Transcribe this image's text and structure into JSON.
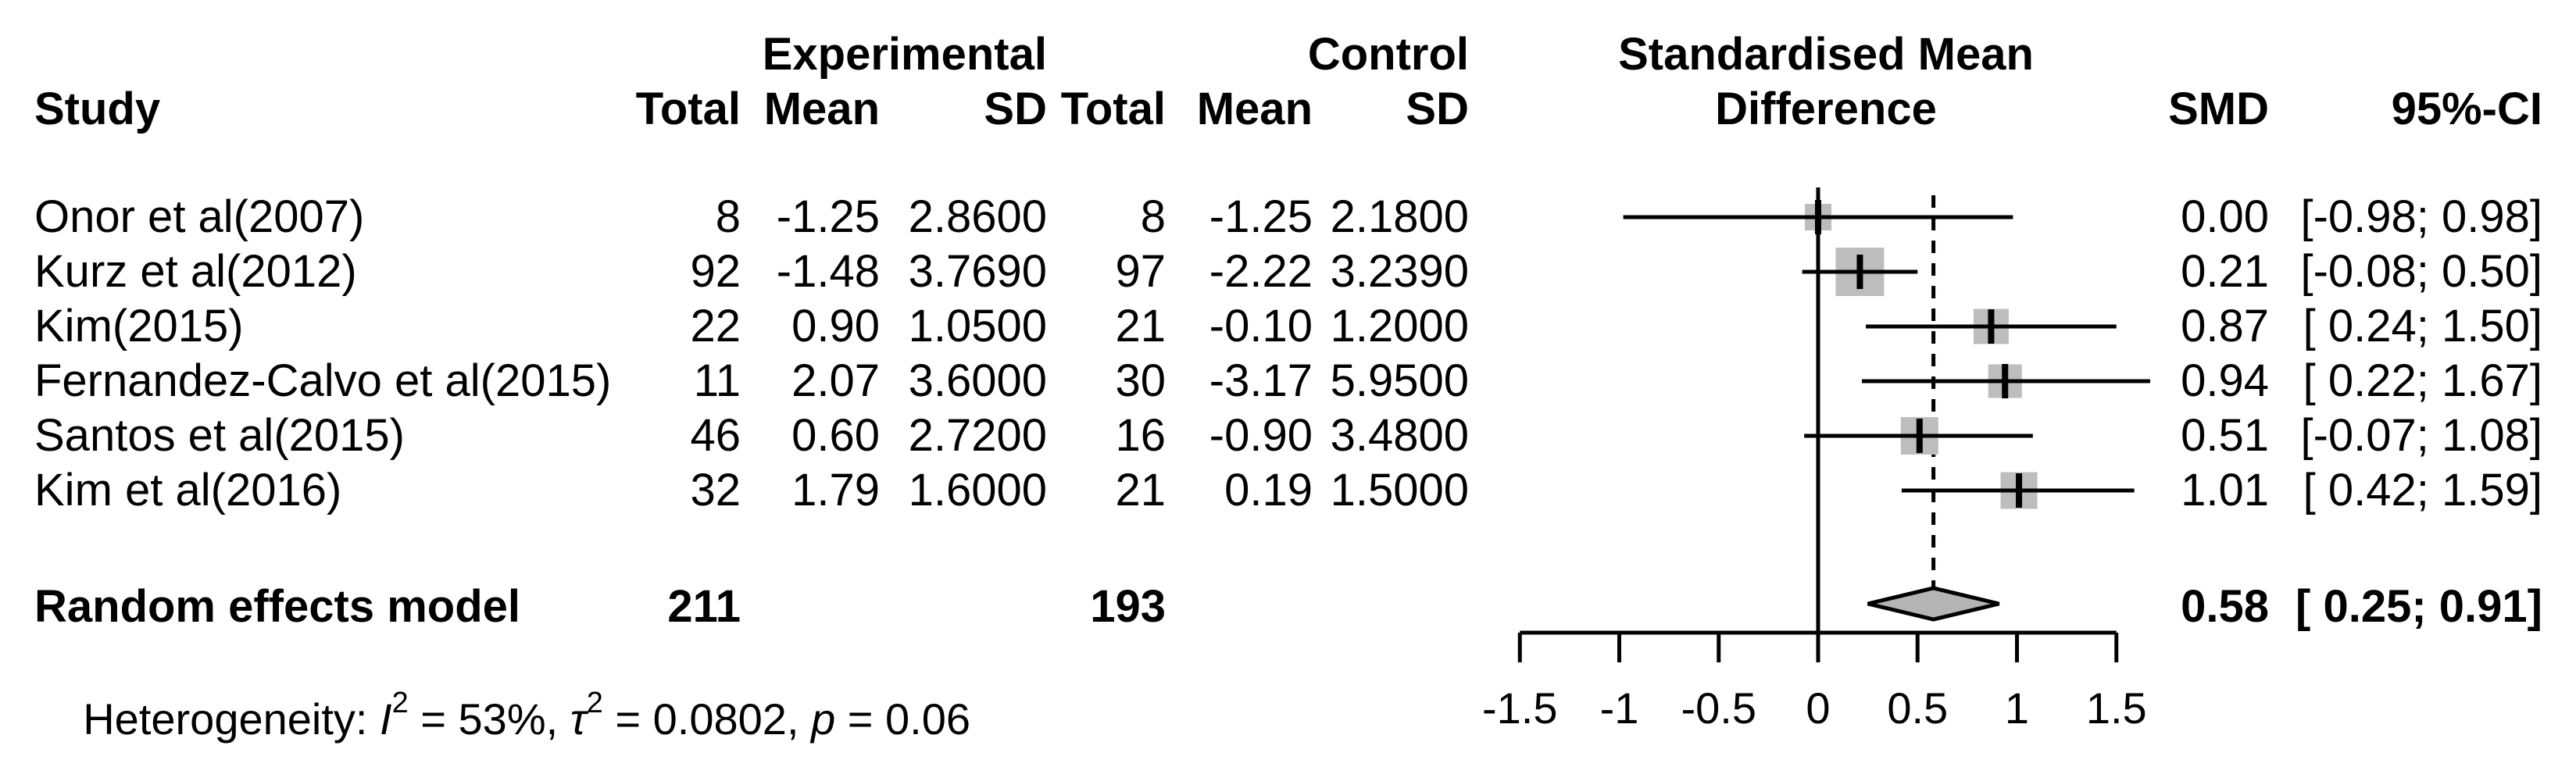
{
  "figure": {
    "header": {
      "study": "Study",
      "group_experimental": "Experimental",
      "group_control": "Control",
      "exp_total": "Total",
      "exp_mean": "Mean",
      "exp_sd": "SD",
      "ctl_total": "Total",
      "ctl_mean": "Mean",
      "ctl_sd": "SD",
      "effect_line1": "Standardised Mean",
      "effect_line2": "Difference",
      "smd": "SMD",
      "ci": "95%-CI"
    },
    "rows": [
      {
        "study": "Onor et al(2007)",
        "exp_total": "8",
        "exp_mean": "-1.25",
        "exp_sd": "2.8600",
        "ctl_total": "8",
        "ctl_mean": "-1.25",
        "ctl_sd": "2.1800",
        "smd": "0.00",
        "ci": "[-0.98; 0.98]"
      },
      {
        "study": "Kurz et al(2012)",
        "exp_total": "92",
        "exp_mean": "-1.48",
        "exp_sd": "3.7690",
        "ctl_total": "97",
        "ctl_mean": "-2.22",
        "ctl_sd": "3.2390",
        "smd": "0.21",
        "ci": "[-0.08; 0.50]"
      },
      {
        "study": "Kim(2015)",
        "exp_total": "22",
        "exp_mean": "0.90",
        "exp_sd": "1.0500",
        "ctl_total": "21",
        "ctl_mean": "-0.10",
        "ctl_sd": "1.2000",
        "smd": "0.87",
        "ci": "[ 0.24; 1.50]"
      },
      {
        "study": "Fernandez-Calvo et al(2015)",
        "exp_total": "11",
        "exp_mean": "2.07",
        "exp_sd": "3.6000",
        "ctl_total": "30",
        "ctl_mean": "-3.17",
        "ctl_sd": "5.9500",
        "smd": "0.94",
        "ci": "[ 0.22; 1.67]"
      },
      {
        "study": "Santos et al(2015)",
        "exp_total": "46",
        "exp_mean": "0.60",
        "exp_sd": "2.7200",
        "ctl_total": "16",
        "ctl_mean": "-0.90",
        "ctl_sd": "3.4800",
        "smd": "0.51",
        "ci": "[-0.07; 1.08]"
      },
      {
        "study": "Kim et al(2016)",
        "exp_total": "32",
        "exp_mean": "1.79",
        "exp_sd": "1.6000",
        "ctl_total": "21",
        "ctl_mean": "0.19",
        "ctl_sd": "1.5000",
        "smd": "1.01",
        "ci": "[ 0.42; 1.59]"
      }
    ],
    "pooled": {
      "label": "Random effects model",
      "exp_total": "211",
      "ctl_total": "193",
      "smd": "0.58",
      "ci": "[ 0.25; 0.91]"
    },
    "heterogeneity": {
      "prefix": "Heterogeneity: ",
      "i_sym": "I",
      "i_sup": "2",
      "i_rest": " = 53%, ",
      "tau_sym": "τ",
      "tau_sup": "2",
      "tau_rest": " = 0.0802, ",
      "p_sym": "p",
      "p_rest": " = 0.06"
    }
  },
  "chart_data": {
    "type": "forest",
    "title": "Standardised Mean Difference",
    "x_axis": {
      "ticks": [
        -1.5,
        -1,
        -0.5,
        0,
        0.5,
        1,
        1.5
      ],
      "tick_labels": [
        "-1.5",
        "-1",
        "-0.5",
        "0",
        "0.5",
        "1",
        "1.5"
      ],
      "range": [
        -1.5,
        1.5
      ],
      "grid": false
    },
    "zero_line_x": 0,
    "dashed_line_x": 0.58,
    "studies": [
      {
        "label": "Onor et al(2007)",
        "smd": 0.0,
        "ci_low": -0.98,
        "ci_high": 0.98,
        "marker_size_px": 34
      },
      {
        "label": "Kurz et al(2012)",
        "smd": 0.21,
        "ci_low": -0.08,
        "ci_high": 0.5,
        "marker_size_px": 62
      },
      {
        "label": "Kim(2015)",
        "smd": 0.87,
        "ci_low": 0.24,
        "ci_high": 1.5,
        "marker_size_px": 45
      },
      {
        "label": "Fernandez-Calvo et al(2015)",
        "smd": 0.94,
        "ci_low": 0.22,
        "ci_high": 1.67,
        "marker_size_px": 43
      },
      {
        "label": "Santos et al(2015)",
        "smd": 0.51,
        "ci_low": -0.07,
        "ci_high": 1.08,
        "marker_size_px": 48
      },
      {
        "label": "Kim et al(2016)",
        "smd": 1.01,
        "ci_low": 0.42,
        "ci_high": 1.59,
        "marker_size_px": 47
      }
    ],
    "pooled": {
      "label": "Random effects model",
      "smd": 0.58,
      "ci_low": 0.25,
      "ci_high": 0.91
    },
    "colors": {
      "marker_fill": "#bdbdbd",
      "diamond_fill": "#b4b4b4",
      "line": "#000000"
    }
  }
}
